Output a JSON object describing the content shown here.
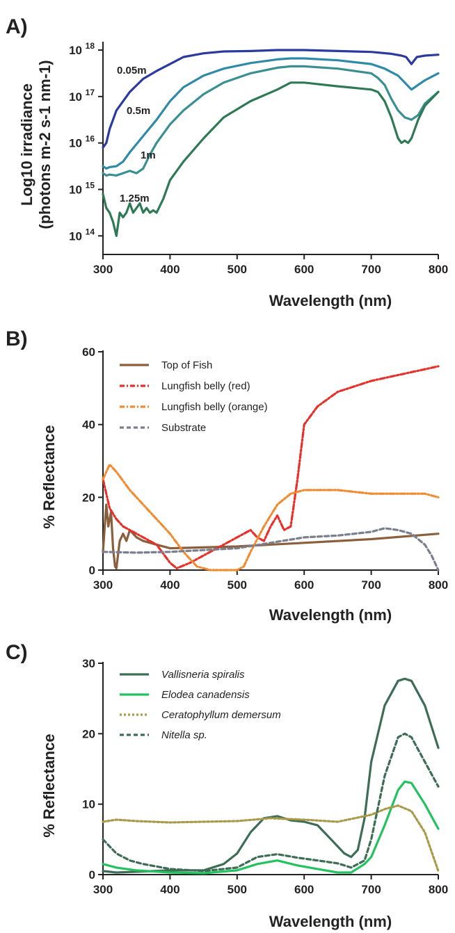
{
  "chart_data": [
    {
      "panel": "A)",
      "type": "line",
      "xlabel": "Wavelength (nm)",
      "ylabel_line1": "Log10 irradiance",
      "ylabel_line2": "(photons m-2 s-1 nm-1)",
      "xlim": [
        300,
        800
      ],
      "ylim_log10": [
        13.6,
        18.15
      ],
      "y_scale": "log",
      "x_ticks": [
        "300",
        "400",
        "500",
        "600",
        "700",
        "800"
      ],
      "y_ticks": [
        {
          "base": "10",
          "exp": "18",
          "v": 18
        },
        {
          "base": "10",
          "exp": "17",
          "v": 17
        },
        {
          "base": "10",
          "exp": "16",
          "v": 16
        },
        {
          "base": "10",
          "exp": "15",
          "v": 15
        },
        {
          "base": "10",
          "exp": "14",
          "v": 14
        }
      ],
      "series": [
        {
          "name": "0.05m",
          "color": "#2b3a9f",
          "x": [
            300,
            305,
            310,
            320,
            340,
            360,
            380,
            400,
            420,
            450,
            480,
            520,
            560,
            600,
            650,
            700,
            730,
            745,
            752,
            760,
            768,
            780,
            800
          ],
          "log10y": [
            15.9,
            16.0,
            16.3,
            16.7,
            17.1,
            17.38,
            17.55,
            17.7,
            17.85,
            17.93,
            17.97,
            17.98,
            18.0,
            18.0,
            17.98,
            17.96,
            17.92,
            17.88,
            17.85,
            17.7,
            17.85,
            17.88,
            17.9
          ]
        },
        {
          "name": "0.5m",
          "color": "#2f8aa8",
          "x": [
            300,
            305,
            310,
            320,
            330,
            340,
            360,
            380,
            400,
            420,
            450,
            480,
            520,
            560,
            580,
            600,
            650,
            700,
            720,
            740,
            750,
            760,
            770,
            780,
            800
          ],
          "log10y": [
            15.5,
            15.45,
            15.48,
            15.5,
            15.6,
            15.8,
            16.15,
            16.5,
            16.9,
            17.2,
            17.45,
            17.6,
            17.72,
            17.8,
            17.82,
            17.82,
            17.78,
            17.7,
            17.6,
            17.45,
            17.3,
            17.15,
            17.25,
            17.35,
            17.5
          ]
        },
        {
          "name": "1m",
          "color": "#3a8f92",
          "x": [
            300,
            305,
            310,
            320,
            330,
            340,
            350,
            360,
            370,
            380,
            400,
            420,
            450,
            480,
            520,
            560,
            580,
            600,
            650,
            700,
            710,
            720,
            730,
            740,
            750,
            760,
            770,
            780,
            800
          ],
          "log10y": [
            15.35,
            15.3,
            15.32,
            15.3,
            15.35,
            15.4,
            15.35,
            15.45,
            15.75,
            16.0,
            16.4,
            16.7,
            17.05,
            17.3,
            17.5,
            17.62,
            17.65,
            17.65,
            17.6,
            17.5,
            17.4,
            17.25,
            16.95,
            16.7,
            16.55,
            16.5,
            16.6,
            16.85,
            17.1
          ]
        },
        {
          "name": "1.25m",
          "color": "#2e7a55",
          "x": [
            300,
            305,
            310,
            315,
            320,
            325,
            330,
            335,
            340,
            345,
            350,
            355,
            360,
            365,
            370,
            375,
            380,
            390,
            400,
            420,
            450,
            480,
            520,
            560,
            580,
            600,
            650,
            700,
            710,
            720,
            730,
            740,
            745,
            750,
            755,
            760,
            770,
            780,
            800
          ],
          "log10y": [
            14.9,
            14.6,
            14.5,
            14.3,
            14.0,
            14.5,
            14.4,
            14.5,
            14.7,
            14.5,
            14.6,
            14.7,
            14.5,
            14.6,
            14.5,
            14.55,
            14.5,
            14.8,
            15.2,
            15.6,
            16.1,
            16.55,
            16.9,
            17.15,
            17.3,
            17.3,
            17.22,
            17.15,
            17.1,
            16.9,
            16.55,
            16.1,
            16.0,
            16.05,
            16.0,
            16.1,
            16.5,
            16.8,
            17.1
          ]
        }
      ]
    },
    {
      "panel": "B)",
      "type": "line",
      "xlabel": "Wavelength (nm)",
      "ylabel": "% Reflectance",
      "xlim": [
        300,
        800
      ],
      "ylim": [
        0,
        60
      ],
      "x_ticks": [
        "300",
        "400",
        "500",
        "600",
        "700",
        "800"
      ],
      "y_ticks": [
        "0",
        "20",
        "40",
        "60"
      ],
      "legend": "top-left",
      "series": [
        {
          "name": "Top of Fish",
          "color": "#8b5e3c",
          "dash": "solid",
          "x": [
            300,
            305,
            308,
            312,
            315,
            318,
            320,
            325,
            330,
            335,
            340,
            350,
            360,
            380,
            400,
            500,
            600,
            700,
            800
          ],
          "y": [
            5,
            18,
            12,
            16,
            6,
            1,
            0.5,
            8,
            10,
            8,
            11,
            9,
            8,
            7,
            6,
            6.5,
            7.5,
            8.5,
            10
          ]
        },
        {
          "name": "Lungfish belly (red)",
          "color": "#e8302a",
          "dash": "dashdot",
          "x": [
            300,
            305,
            310,
            320,
            330,
            340,
            350,
            360,
            380,
            400,
            410,
            430,
            460,
            490,
            510,
            520,
            530,
            540,
            550,
            560,
            570,
            580,
            590,
            600,
            620,
            650,
            700,
            750,
            800
          ],
          "y": [
            25,
            21,
            17,
            14,
            12,
            11,
            10,
            9,
            7,
            2,
            0.5,
            2,
            5,
            8,
            10,
            11,
            9,
            8,
            12,
            15,
            11,
            12,
            25,
            40,
            45,
            49,
            52,
            54,
            56
          ]
        },
        {
          "name": "Lungfish belly (orange)",
          "color": "#f28a30",
          "dash": "dashdot",
          "x": [
            300,
            310,
            320,
            340,
            360,
            380,
            400,
            420,
            440,
            460,
            480,
            500,
            510,
            520,
            540,
            560,
            580,
            600,
            650,
            700,
            750,
            780,
            800
          ],
          "y": [
            25,
            29,
            27,
            22,
            18,
            14,
            10,
            5,
            1,
            0,
            0,
            0,
            1,
            5,
            12,
            18,
            21,
            22,
            22,
            21,
            21,
            21,
            20
          ]
        },
        {
          "name": "Substrate",
          "color": "#7a7f8e",
          "dash": "dash",
          "x": [
            300,
            350,
            400,
            450,
            500,
            550,
            600,
            650,
            700,
            720,
            740,
            760,
            780,
            790,
            800
          ],
          "y": [
            5,
            4.8,
            5,
            5.5,
            6,
            7.5,
            9,
            9.5,
            10.5,
            11.5,
            11,
            10,
            7,
            4,
            0
          ]
        }
      ]
    },
    {
      "panel": "C)",
      "type": "line",
      "xlabel": "Wavelength (nm)",
      "ylabel": "% Reflectance",
      "xlim": [
        300,
        800
      ],
      "ylim": [
        0,
        30
      ],
      "x_ticks": [
        "300",
        "400",
        "500",
        "600",
        "700",
        "800"
      ],
      "y_ticks": [
        "0",
        "10",
        "20",
        "30"
      ],
      "legend": "top-left",
      "series": [
        {
          "name": "Vallisneria spiralis",
          "color": "#3d6e55",
          "dash": "solid",
          "italic": true,
          "x": [
            300,
            320,
            350,
            400,
            450,
            480,
            500,
            520,
            540,
            560,
            580,
            600,
            620,
            640,
            660,
            670,
            680,
            690,
            700,
            720,
            740,
            750,
            760,
            780,
            800
          ],
          "y": [
            0.5,
            0.3,
            0.4,
            0.6,
            0.6,
            1.5,
            3,
            6,
            8,
            8.3,
            7.7,
            7.5,
            7,
            5,
            3,
            2.5,
            3.5,
            8,
            16,
            24,
            27.5,
            27.8,
            27.5,
            24,
            18
          ]
        },
        {
          "name": "Elodea canadensis",
          "color": "#22c25f",
          "dash": "solid",
          "italic": true,
          "x": [
            300,
            320,
            350,
            400,
            450,
            500,
            530,
            560,
            590,
            620,
            650,
            670,
            690,
            700,
            720,
            740,
            750,
            760,
            780,
            800
          ],
          "y": [
            1.5,
            1,
            0.6,
            0.3,
            0.2,
            0.6,
            1.5,
            2,
            1.3,
            0.8,
            0.3,
            0.3,
            1.5,
            2.5,
            7,
            12,
            13.2,
            13,
            10,
            6.5
          ]
        },
        {
          "name": "Ceratophyllum demersum",
          "color": "#a89a4a",
          "dash": "dot",
          "italic": true,
          "x": [
            300,
            320,
            350,
            400,
            450,
            500,
            550,
            600,
            650,
            700,
            720,
            740,
            760,
            780,
            800
          ],
          "y": [
            7.5,
            7.8,
            7.6,
            7.4,
            7.5,
            7.6,
            8,
            7.8,
            7.5,
            8.5,
            9.3,
            9.8,
            9,
            6,
            0.5
          ]
        },
        {
          "name": "Nitella sp.",
          "color": "#3d6e55",
          "dash": "dash",
          "italic": true,
          "x": [
            300,
            310,
            320,
            340,
            360,
            400,
            450,
            500,
            530,
            560,
            590,
            620,
            650,
            670,
            690,
            700,
            720,
            740,
            750,
            760,
            780,
            800
          ],
          "y": [
            5,
            4,
            3,
            2,
            1.5,
            0.8,
            0.5,
            1,
            2.5,
            2.9,
            2.4,
            2,
            1.6,
            1,
            2,
            5,
            14,
            19.5,
            20,
            19.5,
            16,
            12.5
          ]
        }
      ]
    }
  ]
}
